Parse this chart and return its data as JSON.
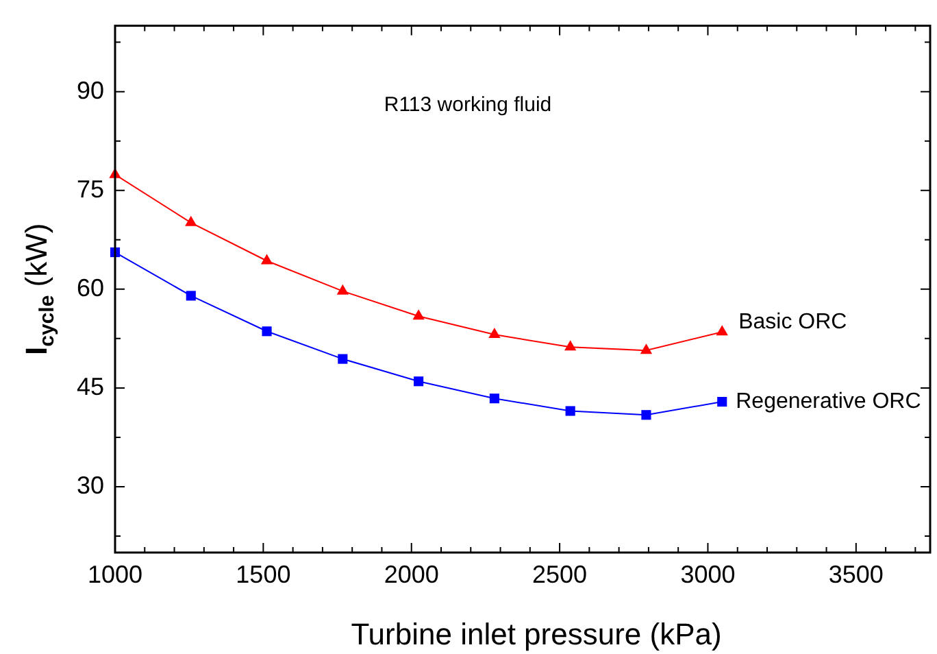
{
  "chart_data": {
    "type": "line",
    "xlabel": "Turbine inlet pressure (kPa)",
    "ylabel": "I$_{cycle}$ (kW)",
    "annotations": [
      "R113 working fluid"
    ],
    "xlim": [
      1000,
      3750
    ],
    "ylim": [
      20,
      100
    ],
    "xticks": [
      1000,
      {
        "value": 1100,
        "label": null
      },
      {
        "value": 1200,
        "label": null
      },
      {
        "value": 1300,
        "label": null
      },
      {
        "value": 1400,
        "label": null
      },
      1500,
      {
        "value": 1600,
        "label": null
      },
      {
        "value": 1700,
        "label": null
      },
      {
        "value": 1800,
        "label": null
      },
      {
        "value": 1900,
        "label": null
      },
      2000,
      {
        "value": 2100,
        "label": null
      },
      {
        "value": 2200,
        "label": null
      },
      {
        "value": 2300,
        "label": null
      },
      {
        "value": 2400,
        "label": null
      },
      2500,
      {
        "value": 2600,
        "label": null
      },
      {
        "value": 2700,
        "label": null
      },
      {
        "value": 2800,
        "label": null
      },
      {
        "value": 2900,
        "label": null
      },
      3000,
      {
        "value": 3100,
        "label": null
      },
      {
        "value": 3200,
        "label": null
      },
      {
        "value": 3300,
        "label": null
      },
      {
        "value": 3400,
        "label": null
      },
      3500,
      {
        "value": 3600,
        "label": null
      },
      {
        "value": 3700,
        "label": null
      }
    ],
    "yticks": [
      {
        "value": 22.5,
        "label": null
      },
      30,
      {
        "value": 37.5,
        "label": null
      },
      45,
      {
        "value": 52.5,
        "label": null
      },
      60,
      {
        "value": 67.5,
        "label": null
      },
      75,
      {
        "value": 82.5,
        "label": null
      },
      90,
      {
        "value": 97.5,
        "label": null
      }
    ],
    "x": [
      1000,
      1256,
      1512,
      1768,
      2024,
      2280,
      2536,
      2792,
      3048
    ],
    "grid": false,
    "legend": false,
    "line_style": "solid",
    "series": [
      {
        "name": "Basic ORC",
        "color": "#ff0000",
        "marker": "triangle",
        "values": [
          77.4,
          70.1,
          64.3,
          59.7,
          55.9,
          53.1,
          51.2,
          50.7,
          53.5
        ]
      },
      {
        "name": "Regenerative ORC",
        "color": "#0000ff",
        "marker": "square",
        "values": [
          65.6,
          59.0,
          53.6,
          49.4,
          46.0,
          43.4,
          41.5,
          40.9,
          42.9
        ]
      }
    ]
  }
}
